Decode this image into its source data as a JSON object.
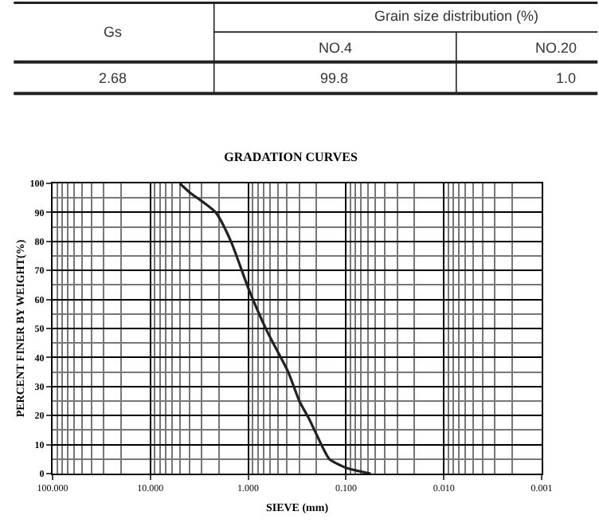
{
  "chart_data": {
    "type": "line",
    "title": "GRADATION CURVES",
    "xlabel": "SIEVE (mm)",
    "ylabel": "PERCENT FINER BY WEIGHT(%)",
    "x": [
      5.0,
      4.0,
      2.15,
      1.5,
      1.0,
      0.64,
      0.39,
      0.3,
      0.24,
      0.17,
      0.148,
      0.1,
      0.056
    ],
    "series": [
      {
        "color": "#222222",
        "values": [
          100,
          97,
          90,
          80,
          64,
          49,
          35,
          25,
          19,
          8.5,
          5,
          2,
          0
        ]
      }
    ],
    "xlim": [
      100,
      0.001
    ],
    "log": "x",
    "xticks": [
      {
        "value": 100,
        "label": "100.000"
      },
      {
        "value": 10,
        "label": "10.000"
      },
      {
        "value": 1,
        "label": "1.000"
      },
      {
        "value": 0.1,
        "label": "0.100"
      },
      {
        "value": 0.01,
        "label": "0.010"
      },
      {
        "value": 0.001,
        "label": "0.001"
      }
    ],
    "ylim": [
      0,
      100
    ],
    "yticks": [
      0,
      10,
      20,
      30,
      40,
      50,
      60,
      70,
      80,
      90,
      100
    ],
    "grid": true,
    "marker": "none",
    "line_style": "solid",
    "annotations": [
      "Gs",
      "Grain size distribution (%)",
      "NO.4",
      "NO.20",
      "2.68",
      "99.8",
      "1.0"
    ]
  }
}
